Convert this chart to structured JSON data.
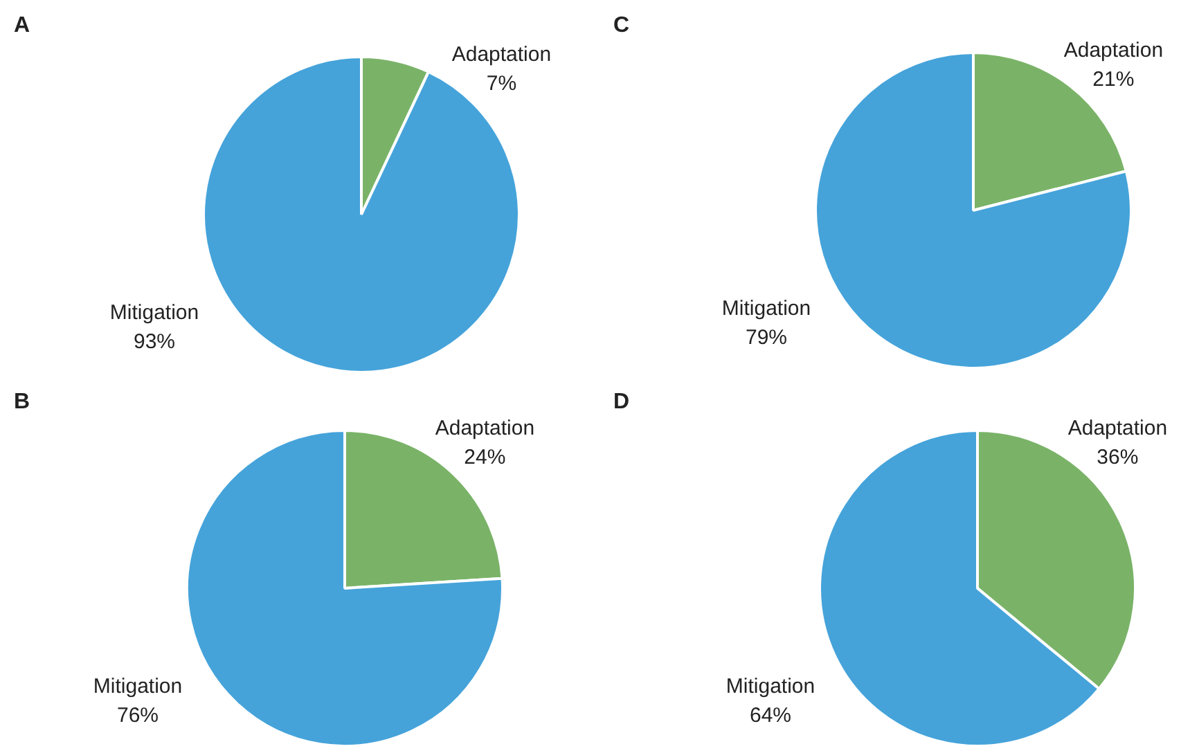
{
  "chart_data": [
    {
      "type": "pie",
      "title": "A",
      "categories": [
        "Adaptation",
        "Mitigation"
      ],
      "values": [
        7,
        93
      ],
      "value_labels": [
        "7%",
        "93%"
      ],
      "colors": [
        "#7ab368",
        "#45a3da"
      ]
    },
    {
      "type": "pie",
      "title": "C",
      "categories": [
        "Adaptation",
        "Mitigation"
      ],
      "values": [
        21,
        79
      ],
      "value_labels": [
        "21%",
        "79%"
      ],
      "colors": [
        "#7ab368",
        "#45a3da"
      ]
    },
    {
      "type": "pie",
      "title": "B",
      "categories": [
        "Adaptation",
        "Mitigation"
      ],
      "values": [
        24,
        76
      ],
      "value_labels": [
        "24%",
        "76%"
      ],
      "colors": [
        "#7ab368",
        "#45a3da"
      ]
    },
    {
      "type": "pie",
      "title": "D",
      "categories": [
        "Adaptation",
        "Mitigation"
      ],
      "values": [
        36,
        64
      ],
      "value_labels": [
        "36%",
        "64%"
      ],
      "colors": [
        "#7ab368",
        "#45a3da"
      ]
    }
  ]
}
